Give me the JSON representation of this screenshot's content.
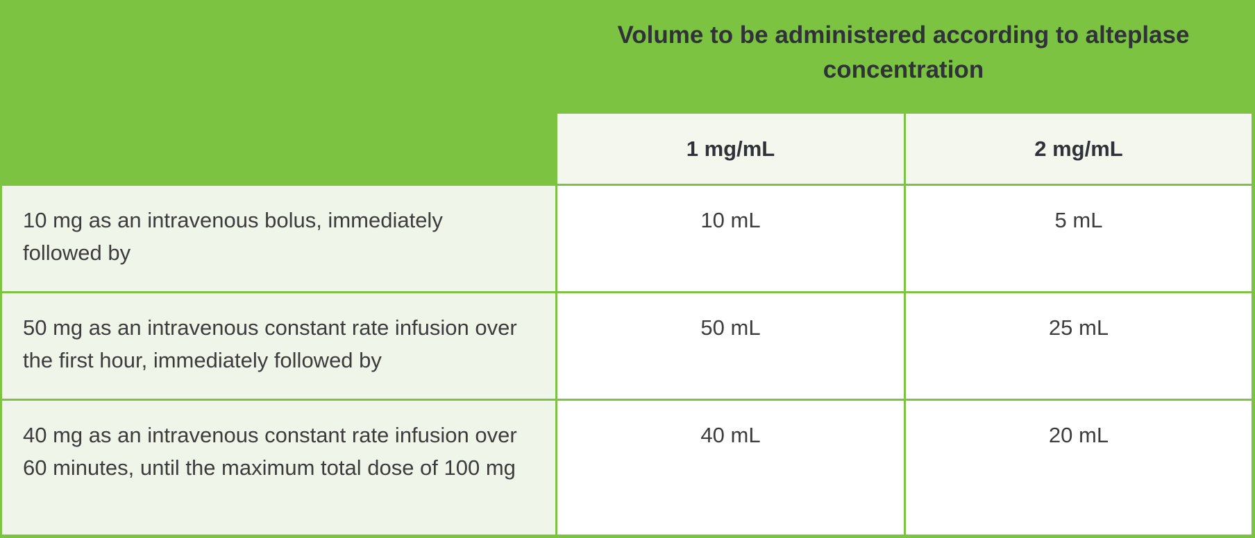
{
  "table": {
    "title": "Volume to be administered according to alteplase concentration",
    "column_headers": [
      "1 mg/mL",
      "2 mg/mL"
    ],
    "rows": [
      {
        "label": "10 mg as an intravenous bolus, immediately followed by",
        "values": [
          "10 mL",
          "5 mL"
        ]
      },
      {
        "label": "50 mg as an intravenous constant rate infusion over the first hour, immediately followed by",
        "values": [
          "50 mL",
          "25 mL"
        ]
      },
      {
        "label": "40 mg as an intravenous constant rate infusion over 60 minutes, until the maximum total dose of 100 mg",
        "values": [
          "40 mL",
          "20 mL"
        ]
      }
    ]
  },
  "colors": {
    "brand_green": "#7CC342",
    "label_cell_bg": "#EFF5E9",
    "header_cell_bg": "#F3F7EE",
    "value_cell_bg": "#FFFFFF",
    "title_text": "#2F3237",
    "body_text": "#3C3C3C"
  },
  "chart_data": {
    "type": "table",
    "title": "Volume to be administered according to alteplase concentration",
    "columns": [
      "",
      "1 mg/mL",
      "2 mg/mL"
    ],
    "rows": [
      [
        "10 mg as an intravenous bolus, immediately followed by",
        "10 mL",
        "5 mL"
      ],
      [
        "50 mg as an intravenous constant rate infusion over the first hour, immediately followed by",
        "50 mL",
        "25 mL"
      ],
      [
        "40 mg as an intravenous constant rate infusion over 60 minutes, until the maximum total dose of 100 mg",
        "40 mL",
        "20 mL"
      ]
    ]
  }
}
